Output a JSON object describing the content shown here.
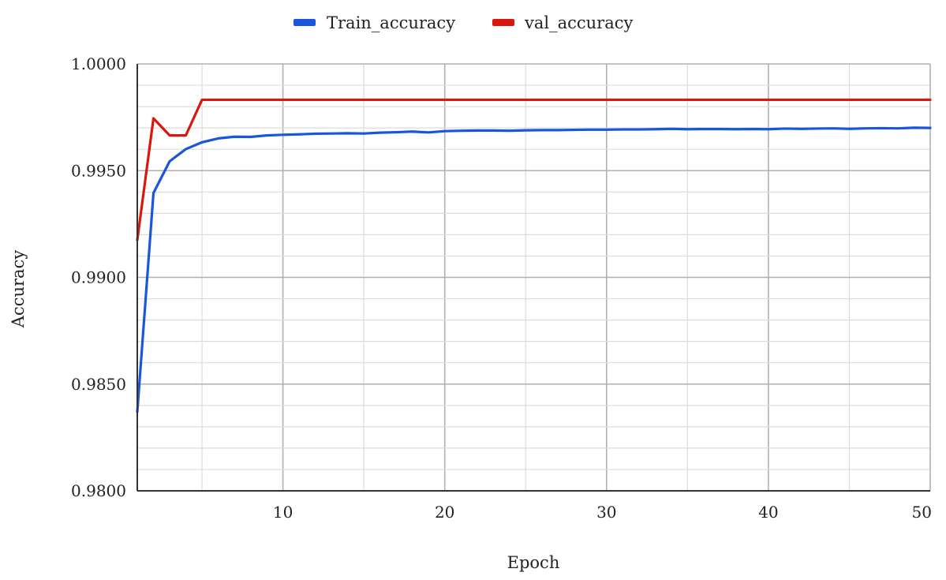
{
  "chart_data": {
    "type": "line",
    "title": "",
    "xlabel": "Epoch",
    "ylabel": "Accuracy",
    "xlim": [
      1,
      50
    ],
    "ylim": [
      0.98,
      1.0
    ],
    "xticks": [
      10,
      20,
      30,
      40,
      50
    ],
    "xtick_labels": [
      "10",
      "20",
      "30",
      "40",
      "50"
    ],
    "yticks": [
      0.98,
      0.985,
      0.99,
      0.995,
      1.0
    ],
    "ytick_labels": [
      "0.9800",
      "0.9850",
      "0.9900",
      "0.9950",
      "1.0000"
    ],
    "grid": true,
    "legend_position": "top-center",
    "x": [
      1,
      2,
      3,
      4,
      5,
      6,
      7,
      8,
      9,
      10,
      11,
      12,
      13,
      14,
      15,
      16,
      17,
      18,
      19,
      20,
      21,
      22,
      23,
      24,
      25,
      26,
      27,
      28,
      29,
      30,
      31,
      32,
      33,
      34,
      35,
      36,
      37,
      38,
      39,
      40,
      41,
      42,
      43,
      44,
      45,
      46,
      47,
      48,
      49,
      50
    ],
    "series": [
      {
        "name": "Train_accuracy",
        "color": "#1a56db",
        "values": [
          0.9837,
          0.99395,
          0.99544,
          0.99601,
          0.99633,
          0.99651,
          0.99659,
          0.99658,
          0.99665,
          0.99668,
          0.9967,
          0.99673,
          0.99674,
          0.99675,
          0.99674,
          0.99678,
          0.9968,
          0.99683,
          0.99679,
          0.99685,
          0.99687,
          0.99688,
          0.99688,
          0.99687,
          0.99689,
          0.9969,
          0.9969,
          0.99691,
          0.99692,
          0.99692,
          0.99693,
          0.99693,
          0.99694,
          0.99696,
          0.99694,
          0.99695,
          0.99695,
          0.99694,
          0.99695,
          0.99694,
          0.99697,
          0.99696,
          0.99697,
          0.99698,
          0.99696,
          0.99698,
          0.99699,
          0.99698,
          0.99701,
          0.997
        ]
      },
      {
        "name": "val_accuracy",
        "color": "#d9170f",
        "values": [
          0.99175,
          0.99745,
          0.99665,
          0.99665,
          0.99832,
          0.99832,
          0.99832,
          0.99832,
          0.99832,
          0.99832,
          0.99832,
          0.99832,
          0.99832,
          0.99832,
          0.99832,
          0.99832,
          0.99832,
          0.99832,
          0.99832,
          0.99832,
          0.99832,
          0.99832,
          0.99832,
          0.99832,
          0.99832,
          0.99832,
          0.99832,
          0.99832,
          0.99832,
          0.99832,
          0.99832,
          0.99832,
          0.99832,
          0.99832,
          0.99832,
          0.99832,
          0.99832,
          0.99832,
          0.99832,
          0.99832,
          0.99832,
          0.99832,
          0.99832,
          0.99832,
          0.99832,
          0.99832,
          0.99832,
          0.99832,
          0.99832,
          0.99832
        ]
      }
    ]
  },
  "colors": {
    "gridMajor": "#b0b0b0",
    "gridMinor": "#dcdcdc",
    "axis": "#333333"
  }
}
